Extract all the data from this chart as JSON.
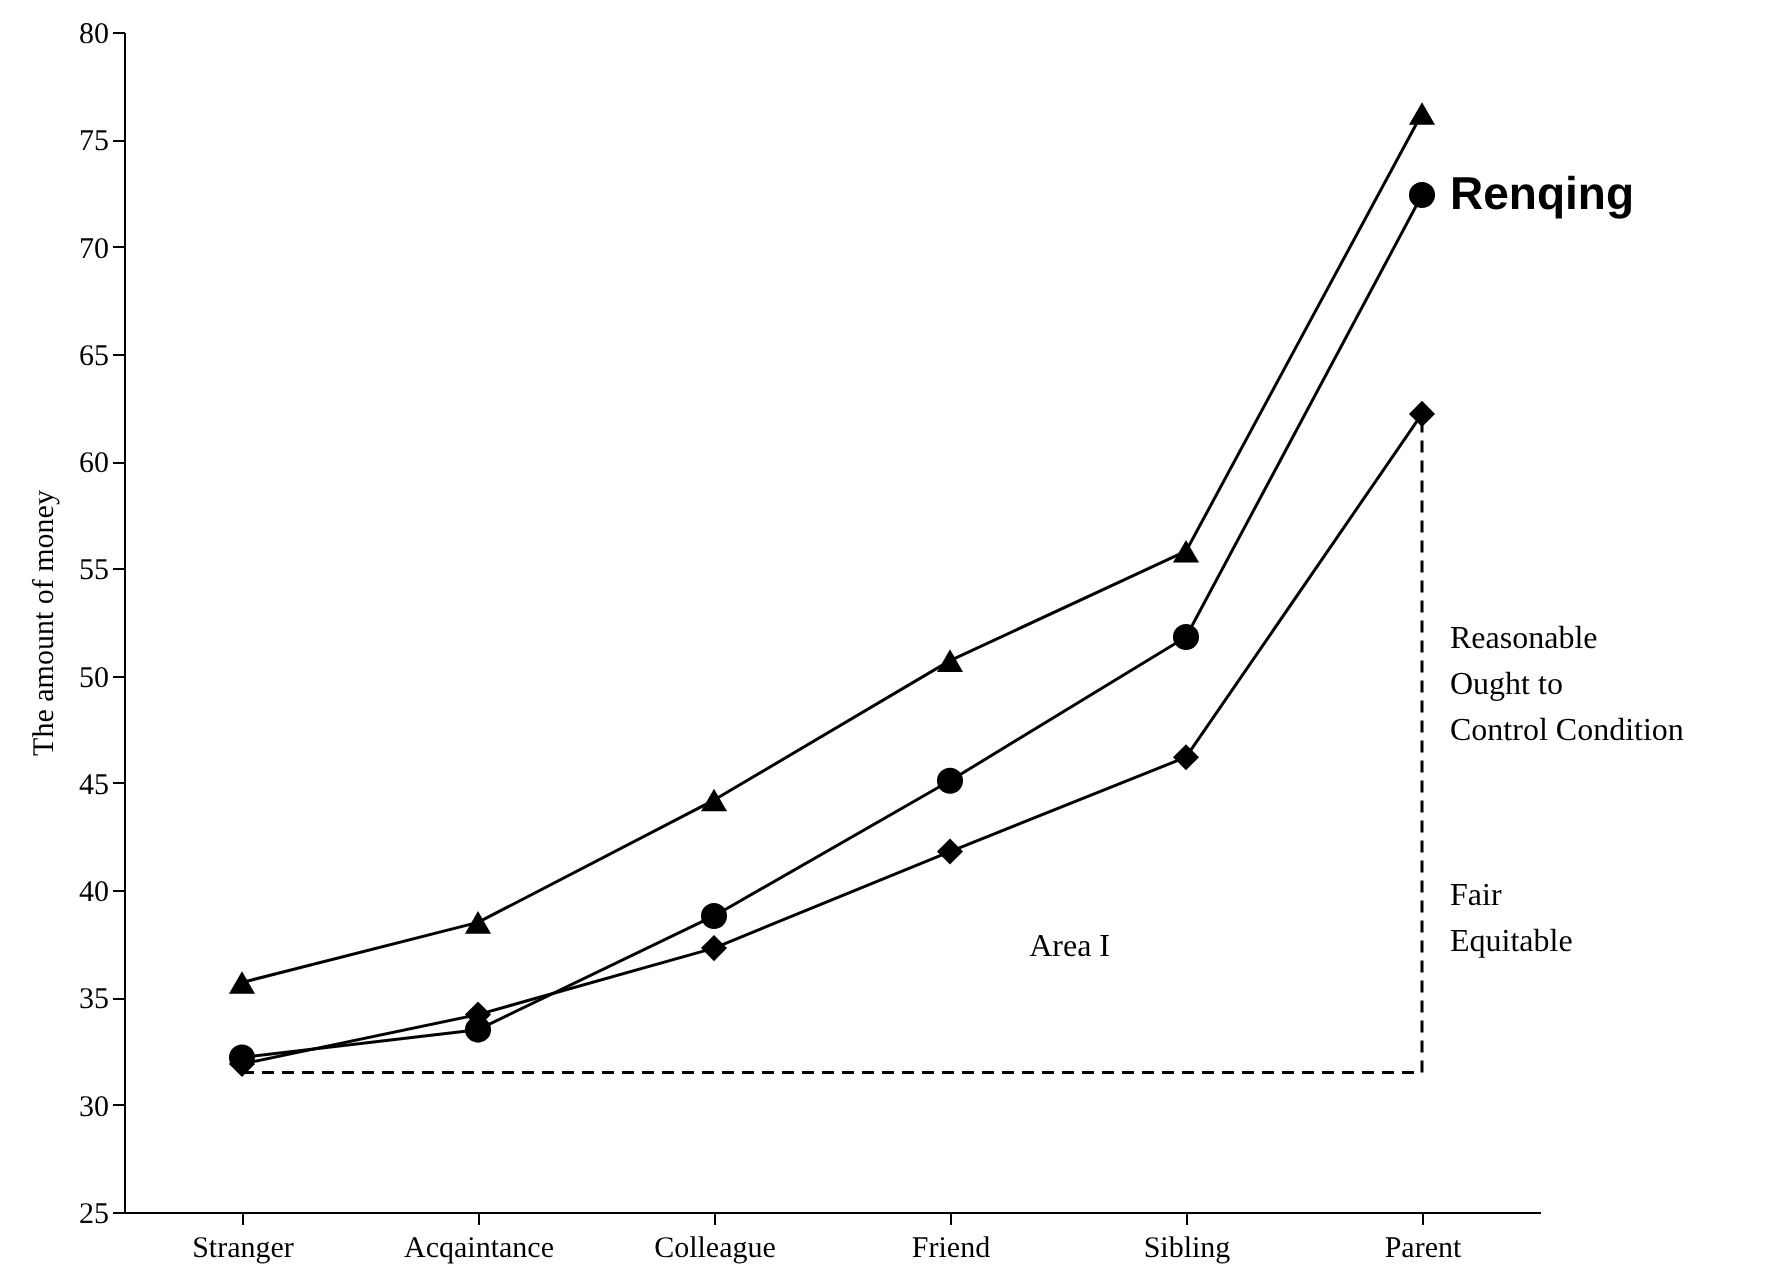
{
  "chart_data": {
    "type": "line",
    "ylabel": "The amount of money",
    "categories": [
      "Stranger",
      "Acqaintance",
      "Colleague",
      "Friend",
      "Sibling",
      "Parent"
    ],
    "ylim": [
      25,
      80
    ],
    "yticks": [
      25,
      30,
      35,
      40,
      45,
      50,
      55,
      60,
      65,
      70,
      75,
      80
    ],
    "grid": false,
    "line_style": "solid",
    "series": [
      {
        "color": "#000000",
        "marker": "triangle",
        "values": [
          35.7,
          38.5,
          44.2,
          50.7,
          55.8,
          76.2
        ]
      },
      {
        "name": "Renqing",
        "color": "#000000",
        "marker": "circle",
        "values": [
          32.2,
          33.5,
          38.8,
          45.1,
          51.8,
          72.4
        ]
      },
      {
        "color": "#000000",
        "marker": "diamond",
        "values": [
          31.9,
          34.2,
          37.3,
          41.8,
          46.2,
          62.2
        ]
      },
      {
        "type": "line",
        "color": "#000000",
        "marker": "none",
        "line_style": "dashed",
        "x": [
          "Stranger",
          "Parent",
          "Parent"
        ],
        "values": [
          31.5,
          31.5,
          62.2
        ]
      }
    ],
    "annotations": [
      {
        "text": "Reasonable\nOught to\nControl Condition",
        "x": "Parent",
        "y": 52.5
      },
      {
        "text": "Fair\nEquitable",
        "x": "Parent",
        "y": 40.5
      },
      "Area I"
    ]
  }
}
